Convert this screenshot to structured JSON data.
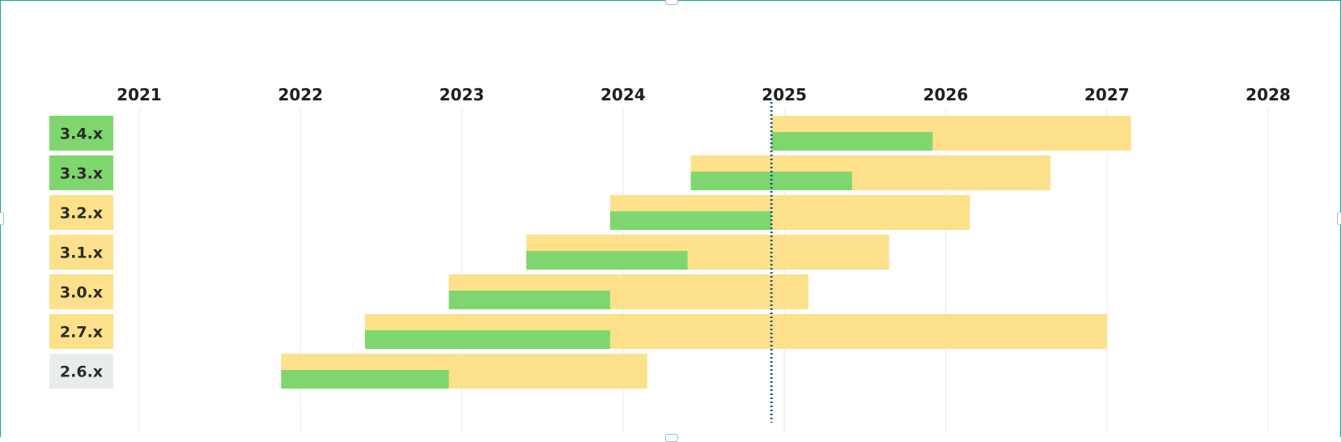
{
  "chart_data": {
    "type": "gantt",
    "x_ticks": [
      "2021",
      "2022",
      "2023",
      "2024",
      "2025",
      "2026",
      "2027",
      "2028"
    ],
    "xlim": [
      2021.0,
      2028.0
    ],
    "current_date": 2024.92,
    "grid": true,
    "colors": {
      "active": "#7fd66f",
      "maintenance": "#fde08a",
      "eol": "#e8ecec",
      "today_line": "#1f5d8a",
      "grid": "#e8e8e8"
    },
    "versions": [
      {
        "label": "3.4.x",
        "status": "active",
        "start": 2024.92,
        "active_end": 2025.92,
        "end": 2027.15
      },
      {
        "label": "3.3.x",
        "status": "active",
        "start": 2024.42,
        "active_end": 2025.42,
        "end": 2026.65
      },
      {
        "label": "3.2.x",
        "status": "maintenance",
        "start": 2023.92,
        "active_end": 2024.92,
        "end": 2026.15
      },
      {
        "label": "3.1.x",
        "status": "maintenance",
        "start": 2023.4,
        "active_end": 2024.4,
        "end": 2025.65
      },
      {
        "label": "3.0.x",
        "status": "maintenance",
        "start": 2022.92,
        "active_end": 2023.92,
        "end": 2025.15
      },
      {
        "label": "2.7.x",
        "status": "maintenance",
        "start": 2022.4,
        "active_end": 2023.92,
        "end": 2027.0
      },
      {
        "label": "2.6.x",
        "status": "eol",
        "start": 2021.88,
        "active_end": 2022.92,
        "end": 2024.15
      }
    ]
  }
}
